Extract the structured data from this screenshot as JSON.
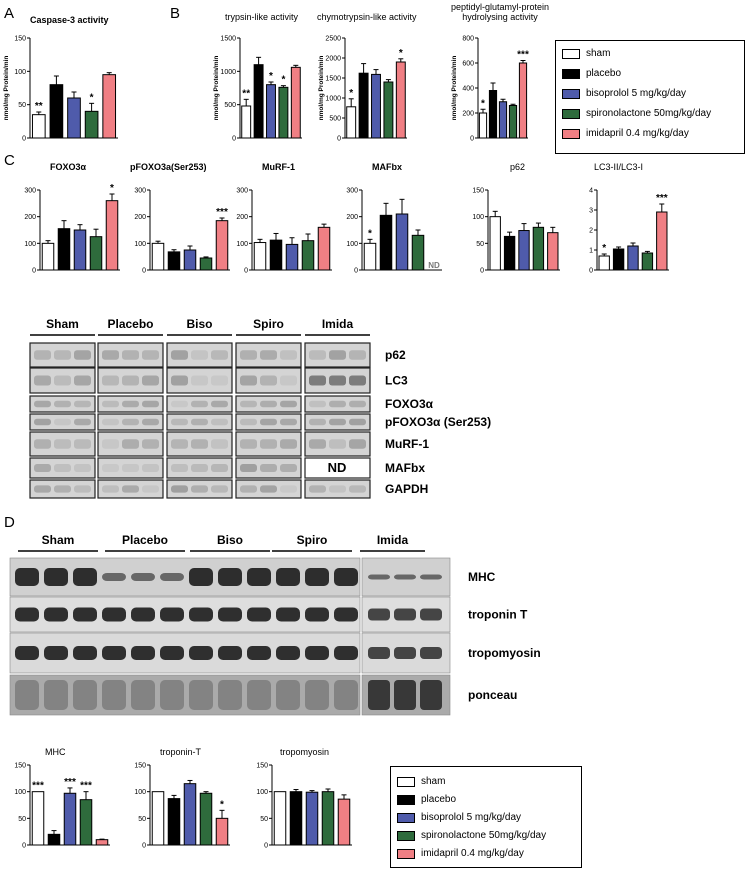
{
  "panels": {
    "A": "A",
    "B": "B",
    "C": "C",
    "D": "D"
  },
  "colors": {
    "sham": "#ffffff",
    "placebo": "#000000",
    "bisoprolol": "#4f5bab",
    "spironolactone": "#2e6b3c",
    "imidapril": "#f07f84"
  },
  "legend": [
    "sham",
    "placebo",
    "bisoprolol 5 mg/kg/day",
    "spironolactone 50mg/kg/day",
    "imidapril 0.4 mg/kg/day"
  ],
  "blot_c": {
    "groups": [
      "Sham",
      "Placebo",
      "Biso",
      "Spiro",
      "Imida"
    ],
    "rows": [
      "p62",
      "LC3",
      "FOXO3α",
      "pFOXO3α (Ser253)",
      "MuRF-1",
      "MAFbx",
      "GAPDH"
    ],
    "nd": "ND"
  },
  "blot_d": {
    "groups": [
      "Sham",
      "Placebo",
      "Biso",
      "Spiro",
      "Imida"
    ],
    "rows": [
      "MHC",
      "troponin T",
      "tropomyosin",
      "ponceau"
    ]
  },
  "chart_data": [
    {
      "type": "bar",
      "title": "Caspase-3 activity",
      "ylabel": "nmol/mg Protein/min",
      "ylim": [
        0,
        150
      ],
      "yticks": [
        0,
        50,
        100,
        150
      ],
      "values": [
        35,
        80,
        60,
        40,
        95
      ],
      "errors": [
        4,
        13,
        9,
        12,
        3
      ],
      "stars": [
        "**",
        "",
        "",
        "*",
        ""
      ]
    },
    {
      "type": "bar",
      "title": "trypsin-like activity",
      "ylabel": "nmol/mg Protein/min",
      "ylim": [
        0,
        1500
      ],
      "yticks": [
        0,
        500,
        1000,
        1500
      ],
      "values": [
        480,
        1100,
        800,
        760,
        1060
      ],
      "errors": [
        100,
        110,
        40,
        25,
        30
      ],
      "stars": [
        "**",
        "",
        "*",
        "*",
        ""
      ]
    },
    {
      "type": "bar",
      "title": "chymotrypsin-like activity",
      "ylabel": "nmol/mg Protein/min",
      "ylim": [
        0,
        2500
      ],
      "yticks": [
        0,
        500,
        1000,
        1500,
        2000,
        2500
      ],
      "values": [
        780,
        1620,
        1590,
        1400,
        1900
      ],
      "errors": [
        200,
        240,
        120,
        60,
        80
      ],
      "stars": [
        "*",
        "",
        "",
        "",
        "*"
      ]
    },
    {
      "type": "bar",
      "title": "peptidyl-glutamyl-protein hydrolysing activity",
      "ylabel": "nmol/mg Protein/min",
      "ylim": [
        0,
        800
      ],
      "yticks": [
        0,
        200,
        400,
        600,
        800
      ],
      "values": [
        200,
        380,
        290,
        260,
        600
      ],
      "errors": [
        30,
        60,
        20,
        10,
        20
      ],
      "stars": [
        "*",
        "",
        "",
        "",
        "***"
      ]
    },
    {
      "type": "bar",
      "title": "FOXO3α",
      "ylim": [
        0,
        300
      ],
      "yticks": [
        0,
        100,
        200,
        300
      ],
      "values": [
        100,
        155,
        150,
        125,
        260
      ],
      "errors": [
        10,
        30,
        20,
        28,
        25
      ],
      "stars": [
        "",
        "",
        "",
        "",
        "*"
      ]
    },
    {
      "type": "bar",
      "title": "pFOXO3a(Ser253)",
      "ylim": [
        0,
        300
      ],
      "yticks": [
        0,
        100,
        200,
        300
      ],
      "values": [
        100,
        68,
        75,
        45,
        185
      ],
      "errors": [
        8,
        8,
        15,
        4,
        10
      ],
      "stars": [
        "",
        "",
        "",
        "",
        "***"
      ]
    },
    {
      "type": "bar",
      "title": "MuRF-1",
      "ylim": [
        0,
        300
      ],
      "yticks": [
        0,
        100,
        200,
        300
      ],
      "values": [
        103,
        112,
        96,
        110,
        160
      ],
      "errors": [
        12,
        25,
        25,
        25,
        12
      ],
      "stars": [
        "",
        "",
        "",
        "",
        ""
      ]
    },
    {
      "type": "bar",
      "title": "MAFbx",
      "ylim": [
        0,
        300
      ],
      "yticks": [
        0,
        100,
        200,
        300
      ],
      "values": [
        100,
        205,
        210,
        130,
        0
      ],
      "errors": [
        15,
        45,
        55,
        20,
        0
      ],
      "stars": [
        "*",
        "",
        "",
        "",
        ""
      ],
      "nd": "ND"
    },
    {
      "type": "bar",
      "title": "p62",
      "ylim": [
        0,
        150
      ],
      "yticks": [
        0,
        50,
        100,
        150
      ],
      "values": [
        100,
        63,
        74,
        80,
        70
      ],
      "errors": [
        10,
        8,
        13,
        8,
        10
      ],
      "stars": [
        "",
        "",
        "",
        "",
        ""
      ]
    },
    {
      "type": "bar",
      "title": "LC3-II/LC3-I",
      "ylim": [
        0,
        4
      ],
      "yticks": [
        0,
        1,
        2,
        3,
        4
      ],
      "values": [
        0.7,
        1.05,
        1.2,
        0.85,
        2.9
      ],
      "errors": [
        0.1,
        0.1,
        0.15,
        0.08,
        0.4
      ],
      "stars": [
        "*",
        "",
        "",
        "",
        "***"
      ]
    },
    {
      "type": "bar",
      "title": "MHC",
      "ylim": [
        0,
        150
      ],
      "yticks": [
        0,
        50,
        100,
        150
      ],
      "values": [
        100,
        20,
        97,
        85,
        10
      ],
      "errors": [
        0,
        7,
        10,
        15,
        1
      ],
      "stars": [
        "***",
        "",
        "***",
        "***",
        ""
      ]
    },
    {
      "type": "bar",
      "title": "troponin-T",
      "ylim": [
        0,
        150
      ],
      "yticks": [
        0,
        50,
        100,
        150
      ],
      "values": [
        100,
        87,
        115,
        97,
        50
      ],
      "errors": [
        0,
        6,
        6,
        3,
        15
      ],
      "stars": [
        "",
        "",
        "",
        "",
        "*"
      ]
    },
    {
      "type": "bar",
      "title": "tropomyosin",
      "ylim": [
        0,
        150
      ],
      "yticks": [
        0,
        50,
        100,
        150
      ],
      "values": [
        100,
        100,
        99,
        100,
        86
      ],
      "errors": [
        0,
        4,
        3,
        5,
        8
      ],
      "stars": [
        "",
        "",
        "",
        "",
        ""
      ]
    }
  ]
}
